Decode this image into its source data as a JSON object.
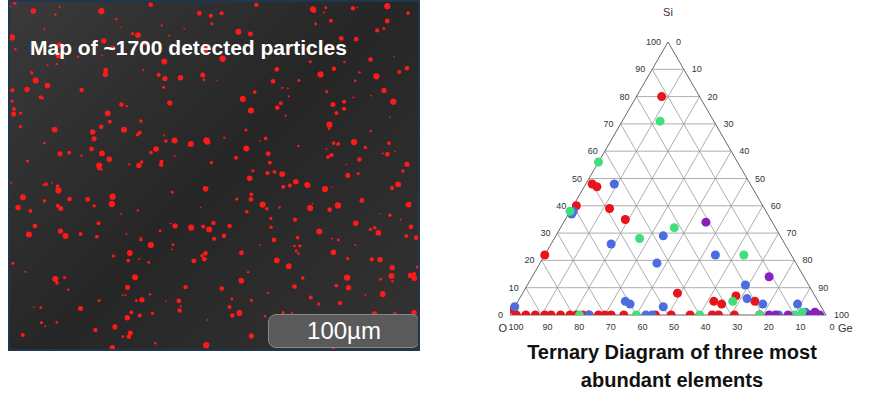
{
  "image_panel": {
    "label": "Map of ~1700 detected particles",
    "scale_bar": "100µm"
  },
  "chart_data": {
    "type": "ternary",
    "title": "Ternary Diagram of three most abundant elements",
    "vertices": {
      "top": "Si",
      "left": "O",
      "right": "Ge"
    },
    "lim": [
      0,
      100
    ],
    "ticks": [
      0,
      10,
      20,
      30,
      40,
      50,
      60,
      70,
      80,
      90,
      100
    ],
    "grid": true,
    "series": [
      {
        "color": "#e8141c",
        "Si": [
          80,
          48,
          47,
          40,
          39,
          35,
          22,
          2,
          8,
          5,
          4,
          7,
          5,
          0,
          0,
          0,
          0,
          0,
          0,
          0,
          0,
          0,
          0,
          0,
          0,
          0,
          0,
          0,
          0,
          0,
          0,
          0,
          0,
          0,
          0
        ],
        "Ge": [
          8,
          2,
          4,
          1,
          12,
          19,
          0,
          0,
          49,
          62,
          65,
          68,
          75,
          2,
          5,
          8,
          11,
          13,
          16,
          19,
          21,
          23,
          25,
          28,
          30,
          32,
          36,
          46,
          51,
          57,
          64,
          66,
          71,
          79,
          93
        ],
        "O": [
          12,
          50,
          49,
          59,
          49,
          46,
          78,
          98,
          43,
          33,
          31,
          25,
          20,
          98,
          95,
          92,
          89,
          87,
          84,
          81,
          79,
          77,
          75,
          72,
          70,
          68,
          64,
          54,
          49,
          43,
          36,
          34,
          29,
          21,
          7
        ]
      },
      {
        "color": "#4a6ee0",
        "Si": [
          48,
          38,
          37,
          26,
          29,
          22,
          19,
          5,
          4,
          3,
          6,
          11,
          4,
          4,
          1,
          3,
          0,
          0,
          0,
          0
        ],
        "Ge": [
          9,
          1,
          1,
          19,
          34,
          54,
          37,
          34,
          36,
          47,
          72,
          69,
          78,
          89,
          93,
          0,
          25,
          43,
          45,
          85
        ],
        "O": [
          43,
          61,
          62,
          55,
          37,
          24,
          44,
          61,
          60,
          50,
          22,
          20,
          18,
          7,
          6,
          97,
          75,
          57,
          55,
          15
        ]
      },
      {
        "color": "#3fe07c",
        "Si": [
          71,
          56,
          38,
          28,
          32,
          22,
          5,
          1,
          0,
          0,
          0,
          0,
          0,
          0
        ],
        "Ge": [
          12,
          0,
          0,
          27,
          36,
          63,
          68,
          92,
          22,
          40,
          60,
          79,
          90,
          96
        ],
        "O": [
          17,
          44,
          62,
          45,
          32,
          15,
          27,
          7,
          78,
          60,
          40,
          21,
          10,
          4
        ]
      },
      {
        "color": "#8a1fc0",
        "Si": [
          34,
          14,
          1,
          0,
          0,
          0,
          0,
          0
        ],
        "Ge": [
          45,
          75,
          96,
          82,
          84,
          88,
          95,
          98
        ],
        "O": [
          21,
          11,
          3,
          18,
          16,
          12,
          5,
          2
        ]
      }
    ]
  }
}
